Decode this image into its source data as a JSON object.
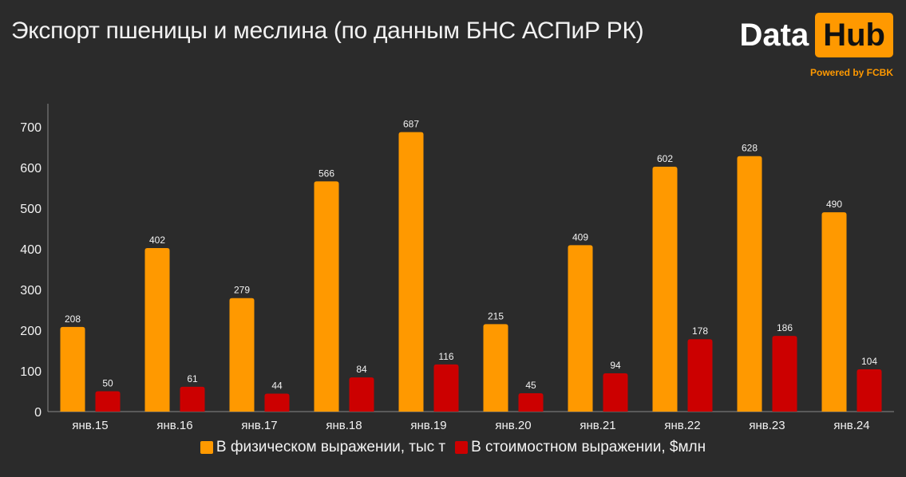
{
  "title": "Экспорт пшеницы и меслина (по данным БНС АСПиР РК)",
  "logo": {
    "data_text": "Data",
    "hub_text": "Hub",
    "powered_by": "Powered by FCBK",
    "accent": "#ff9900"
  },
  "chart_data": {
    "type": "bar",
    "categories": [
      "янв.15",
      "янв.16",
      "янв.17",
      "янв.18",
      "янв.19",
      "янв.20",
      "янв.21",
      "янв.22",
      "янв.23",
      "янв.24"
    ],
    "series": [
      {
        "name": "В физическом выражении, тыс т",
        "color": "#ff9900",
        "values": [
          208,
          402,
          279,
          566,
          687,
          215,
          409,
          602,
          628,
          490
        ]
      },
      {
        "name": "В стоимостном выражении, $млн",
        "color": "#cc0000",
        "values": [
          50,
          61,
          44,
          84,
          116,
          45,
          94,
          178,
          186,
          104
        ]
      }
    ],
    "ylim": [
      0,
      700
    ],
    "yticks": [
      0,
      100,
      200,
      300,
      400,
      500,
      600,
      700
    ],
    "grid": false,
    "legend_position": "bottom"
  }
}
